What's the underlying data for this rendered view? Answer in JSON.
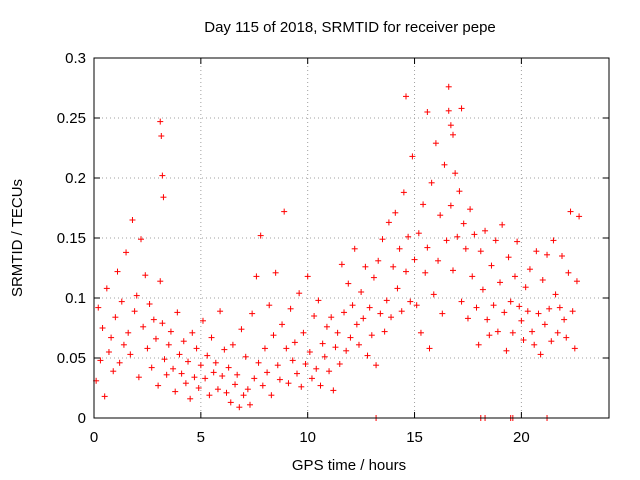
{
  "chart_data": {
    "type": "scatter",
    "title": "Day 115 of 2018, SRMTID for receiver pepe",
    "xlabel": "GPS time / hours",
    "ylabel": "SRMTID / TECUs",
    "xlim": [
      0,
      24.1
    ],
    "ylim": [
      0,
      0.3
    ],
    "grid": true,
    "marker": "+",
    "colors": {
      "points": "#ff0000",
      "axes": "#000000",
      "grid": "#a0a0a0",
      "background": "#ffffff"
    },
    "xticks": [
      {
        "value": 0,
        "label": "0"
      },
      {
        "value": 5,
        "label": "5"
      },
      {
        "value": 10,
        "label": "10"
      },
      {
        "value": 15,
        "label": "15"
      },
      {
        "value": 20,
        "label": "20"
      }
    ],
    "yticks": [
      {
        "value": 0,
        "label": "0"
      },
      {
        "value": 0.05,
        "label": "0.05"
      },
      {
        "value": 0.1,
        "label": "0.1"
      },
      {
        "value": 0.15,
        "label": "0.15"
      },
      {
        "value": 0.2,
        "label": "0.2"
      },
      {
        "value": 0.25,
        "label": "0.25"
      },
      {
        "value": 0.3,
        "label": "0.3"
      }
    ],
    "series": [
      {
        "name": "SRMTID",
        "x": [
          0.1,
          0.2,
          0.3,
          0.4,
          0.5,
          0.6,
          0.7,
          0.8,
          0.9,
          1.0,
          1.1,
          1.2,
          1.3,
          1.4,
          1.5,
          1.6,
          1.7,
          1.8,
          1.9,
          2.0,
          2.1,
          2.2,
          2.3,
          2.4,
          2.5,
          2.6,
          2.7,
          2.8,
          2.9,
          3.0,
          3.1,
          3.2,
          3.3,
          3.4,
          3.5,
          3.6,
          3.7,
          3.8,
          3.9,
          4.0,
          4.1,
          4.2,
          4.3,
          4.4,
          4.5,
          4.6,
          4.7,
          4.8,
          4.9,
          5.0,
          5.1,
          5.2,
          5.3,
          5.4,
          5.5,
          5.6,
          5.7,
          5.8,
          5.9,
          6.0,
          6.1,
          6.2,
          6.3,
          6.4,
          6.5,
          6.6,
          6.7,
          6.8,
          6.9,
          7.0,
          7.1,
          7.2,
          7.3,
          7.4,
          7.5,
          7.6,
          7.7,
          7.8,
          7.9,
          8.0,
          8.1,
          8.2,
          8.3,
          8.4,
          8.5,
          8.6,
          8.7,
          8.8,
          8.9,
          9.0,
          9.1,
          9.2,
          9.3,
          9.4,
          9.5,
          9.6,
          9.7,
          9.8,
          9.9,
          10.0,
          10.1,
          10.2,
          10.3,
          10.4,
          10.5,
          10.6,
          10.7,
          10.8,
          10.9,
          11.0,
          11.1,
          11.2,
          11.3,
          11.4,
          11.5,
          11.6,
          11.7,
          11.8,
          11.9,
          12.0,
          12.1,
          12.2,
          12.3,
          12.4,
          12.5,
          12.6,
          12.7,
          12.8,
          12.9,
          13.0,
          13.1,
          13.2,
          13.3,
          13.4,
          13.5,
          13.6,
          13.7,
          13.8,
          13.9,
          14.0,
          14.1,
          14.2,
          14.3,
          14.4,
          14.5,
          14.6,
          14.7,
          14.8,
          14.9,
          15.0,
          15.1,
          15.2,
          15.3,
          15.4,
          15.5,
          15.6,
          15.7,
          15.8,
          15.9,
          16.0,
          16.1,
          16.2,
          16.3,
          16.4,
          16.5,
          16.6,
          16.7,
          16.8,
          16.9,
          17.0,
          17.1,
          17.2,
          17.3,
          17.4,
          17.5,
          17.6,
          17.7,
          17.8,
          17.9,
          18.0,
          18.1,
          18.2,
          18.3,
          18.4,
          18.5,
          18.6,
          18.7,
          18.8,
          18.9,
          19.0,
          19.1,
          19.2,
          19.3,
          19.4,
          19.5,
          19.6,
          19.7,
          19.8,
          19.9,
          20.0,
          20.1,
          20.2,
          20.3,
          20.4,
          20.5,
          20.6,
          20.7,
          20.8,
          20.9,
          21.0,
          21.1,
          21.2,
          21.3,
          21.4,
          21.5,
          21.6,
          21.7,
          21.8,
          21.9,
          22.0,
          22.1,
          22.2,
          22.3,
          22.4,
          22.5,
          22.6,
          22.7,
          3.1,
          3.15,
          3.2,
          3.25,
          16.6,
          16.7,
          17.2,
          14.6,
          15.6,
          16.8,
          13.2,
          18.1,
          18.3,
          19.5,
          19.6,
          21.2
        ],
        "y": [
          0.031,
          0.092,
          0.048,
          0.075,
          0.018,
          0.108,
          0.055,
          0.067,
          0.039,
          0.084,
          0.122,
          0.046,
          0.097,
          0.061,
          0.138,
          0.071,
          0.053,
          0.165,
          0.089,
          0.102,
          0.034,
          0.149,
          0.076,
          0.119,
          0.058,
          0.095,
          0.042,
          0.082,
          0.066,
          0.027,
          0.114,
          0.079,
          0.049,
          0.036,
          0.061,
          0.072,
          0.041,
          0.022,
          0.088,
          0.053,
          0.037,
          0.064,
          0.029,
          0.047,
          0.016,
          0.071,
          0.034,
          0.058,
          0.025,
          0.044,
          0.081,
          0.033,
          0.052,
          0.019,
          0.067,
          0.038,
          0.046,
          0.024,
          0.089,
          0.035,
          0.057,
          0.021,
          0.042,
          0.013,
          0.061,
          0.028,
          0.036,
          0.009,
          0.074,
          0.019,
          0.051,
          0.024,
          0.011,
          0.087,
          0.033,
          0.118,
          0.046,
          0.152,
          0.027,
          0.058,
          0.038,
          0.094,
          0.019,
          0.069,
          0.121,
          0.044,
          0.032,
          0.078,
          0.172,
          0.058,
          0.029,
          0.091,
          0.048,
          0.063,
          0.037,
          0.104,
          0.026,
          0.071,
          0.045,
          0.118,
          0.055,
          0.033,
          0.085,
          0.041,
          0.098,
          0.027,
          0.062,
          0.051,
          0.076,
          0.039,
          0.084,
          0.023,
          0.059,
          0.071,
          0.045,
          0.128,
          0.088,
          0.056,
          0.112,
          0.067,
          0.094,
          0.141,
          0.078,
          0.061,
          0.105,
          0.083,
          0.126,
          0.052,
          0.092,
          0.069,
          0.117,
          0.044,
          0.131,
          0.087,
          0.149,
          0.072,
          0.098,
          0.163,
          0.084,
          0.126,
          0.171,
          0.108,
          0.141,
          0.089,
          0.188,
          0.122,
          0.151,
          0.097,
          0.218,
          0.132,
          0.094,
          0.154,
          0.071,
          0.178,
          0.121,
          0.142,
          0.058,
          0.196,
          0.103,
          0.229,
          0.131,
          0.169,
          0.087,
          0.211,
          0.148,
          0.256,
          0.177,
          0.123,
          0.204,
          0.151,
          0.189,
          0.097,
          0.162,
          0.141,
          0.083,
          0.174,
          0.118,
          0.153,
          0.092,
          0.061,
          0.139,
          0.107,
          0.156,
          0.082,
          0.069,
          0.127,
          0.094,
          0.148,
          0.072,
          0.113,
          0.161,
          0.088,
          0.056,
          0.134,
          0.097,
          0.071,
          0.118,
          0.147,
          0.093,
          0.081,
          0.065,
          0.109,
          0.089,
          0.124,
          0.072,
          0.061,
          0.139,
          0.087,
          0.053,
          0.115,
          0.078,
          0.136,
          0.091,
          0.064,
          0.148,
          0.103,
          0.071,
          0.092,
          0.135,
          0.082,
          0.067,
          0.121,
          0.172,
          0.089,
          0.058,
          0.114,
          0.168,
          0.247,
          0.235,
          0.202,
          0.184,
          0.276,
          0.244,
          0.258,
          0.268,
          0.255,
          0.236,
          0,
          0,
          0,
          0,
          0,
          0
        ]
      }
    ]
  }
}
